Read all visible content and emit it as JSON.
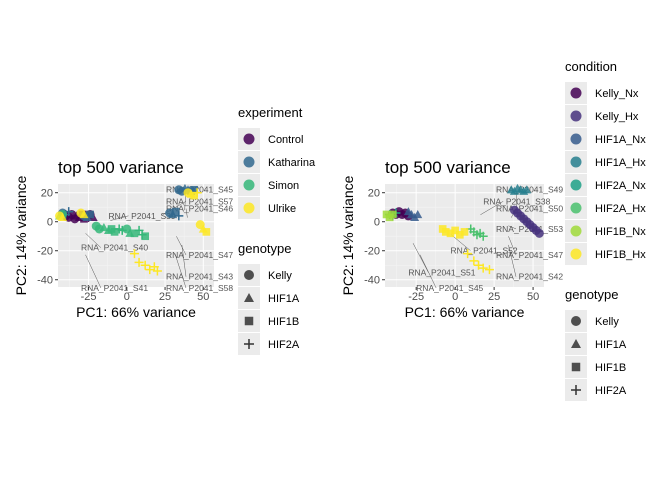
{
  "chart_data": [
    {
      "type": "scatter",
      "title": "top 500 variance",
      "xlabel": "PC1: 66% variance",
      "ylabel": "PC2: 14% variance",
      "xlim": [
        -45,
        57
      ],
      "ylim": [
        -45,
        26
      ],
      "xticks": [
        "-25",
        "0",
        "25",
        "50"
      ],
      "yticks": [
        "20",
        "0",
        "-20",
        "-40"
      ],
      "grid": true,
      "legend": "right",
      "color_legend": {
        "title": "experiment",
        "items": [
          "Control",
          "Katharina",
          "Simon",
          "Ulrike"
        ]
      },
      "shape_legend": {
        "title": "genotype",
        "items": [
          "Kelly",
          "HIF1A",
          "HIF1B",
          "HIF2A"
        ]
      },
      "sample_labels": [
        {
          "text": "RNA_P2041_S45",
          "x": 42,
          "y": 20
        },
        {
          "text": "RNA_P2041_S46",
          "x": 44,
          "y": 7
        },
        {
          "text": "RNA_P2041_S57",
          "x": 26,
          "y": 12
        },
        {
          "text": "RNA_P2041_S39",
          "x": -12,
          "y": 2
        },
        {
          "text": "RNA_P2041_S47",
          "x": 36,
          "y": -25
        },
        {
          "text": "RNA_P2041_S43",
          "x": 40,
          "y": -40
        },
        {
          "text": "RNA_P2041_S58",
          "x": 35,
          "y": -55
        },
        {
          "text": "RNA_P2041_S41",
          "x": -30,
          "y": -57
        },
        {
          "text": "RNA_P2041_S40",
          "x": -30,
          "y": -20
        }
      ],
      "series": [
        {
          "name": "Control",
          "color": "#440154",
          "points": [
            [
              -40,
              4,
              "Kelly"
            ],
            [
              -38,
              3,
              "Kelly"
            ],
            [
              -36,
              5,
              "Kelly"
            ],
            [
              -34,
              2,
              "Kelly"
            ],
            [
              -33,
              4,
              "HIF1A"
            ],
            [
              -31,
              3,
              "HIF1A"
            ],
            [
              -29,
              5,
              "HIF1B"
            ],
            [
              -28,
              2,
              "HIF1B"
            ],
            [
              -27,
              4,
              "HIF2A"
            ],
            [
              -25,
              3,
              "HIF2A"
            ],
            [
              -24,
              5,
              "Kelly"
            ],
            [
              -22,
              3,
              "HIF1A"
            ]
          ]
        },
        {
          "name": "Katharina",
          "color": "#31688e",
          "points": [
            [
              34,
              22,
              "Kelly"
            ],
            [
              36,
              21,
              "Kelly"
            ],
            [
              38,
              23,
              "HIF1A"
            ],
            [
              40,
              22,
              "HIF1A"
            ],
            [
              42,
              21,
              "HIF1B"
            ],
            [
              44,
              22,
              "HIF1B"
            ],
            [
              -42,
              6,
              "Kelly"
            ],
            [
              -40,
              5,
              "HIF2A"
            ],
            [
              -38,
              7,
              "HIF2A"
            ],
            [
              -28,
              4,
              "Kelly"
            ],
            [
              -26,
              3,
              "HIF1A"
            ],
            [
              -24,
              5,
              "HIF1B"
            ],
            [
              28,
              6,
              "Kelly"
            ],
            [
              30,
              5,
              "HIF1A"
            ],
            [
              32,
              7,
              "HIF1B"
            ],
            [
              34,
              4,
              "HIF2A"
            ]
          ]
        },
        {
          "name": "Simon",
          "color": "#35b779",
          "points": [
            [
              -42,
              5,
              "Kelly"
            ],
            [
              -44,
              4,
              "HIF1A"
            ],
            [
              -20,
              -3,
              "Kelly"
            ],
            [
              -18,
              -5,
              "Kelly"
            ],
            [
              -15,
              -4,
              "HIF1A"
            ],
            [
              -12,
              -6,
              "HIF1A"
            ],
            [
              -10,
              -5,
              "HIF1B"
            ],
            [
              -8,
              -7,
              "HIF1B"
            ],
            [
              -5,
              -5,
              "HIF2A"
            ],
            [
              -3,
              -6,
              "HIF2A"
            ],
            [
              0,
              -5,
              "Kelly"
            ],
            [
              2,
              -8,
              "HIF1A"
            ],
            [
              5,
              -8,
              "HIF1B"
            ],
            [
              8,
              -6,
              "HIF2A"
            ],
            [
              10,
              -9,
              "HIF2A"
            ],
            [
              12,
              -10,
              "HIF1B"
            ]
          ]
        },
        {
          "name": "Ulrike",
          "color": "#fde725",
          "points": [
            [
              -44,
              4,
              "Kelly"
            ],
            [
              -42,
              3,
              "HIF1A"
            ],
            [
              -30,
              6,
              "Kelly"
            ],
            [
              -28,
              5,
              "HIF1A"
            ],
            [
              40,
              20,
              "Kelly"
            ],
            [
              42,
              19,
              "HIF1A"
            ],
            [
              44,
              18,
              "HIF1B"
            ],
            [
              46,
              20,
              "HIF2A"
            ],
            [
              48,
              -2,
              "Kelly"
            ],
            [
              50,
              -5,
              "HIF1A"
            ],
            [
              52,
              -7,
              "HIF1B"
            ],
            [
              5,
              -22,
              "HIF2A"
            ],
            [
              8,
              -28,
              "HIF2A"
            ],
            [
              12,
              -30,
              "HIF2A"
            ],
            [
              15,
              -33,
              "HIF2A"
            ],
            [
              18,
              -31,
              "HIF2A"
            ],
            [
              20,
              -34,
              "HIF2A"
            ]
          ]
        }
      ]
    },
    {
      "type": "scatter",
      "title": "top 500 variance",
      "xlabel": "PC1: 66% variance",
      "ylabel": "PC2: 14% variance",
      "xlim": [
        -45,
        57
      ],
      "ylim": [
        -45,
        26
      ],
      "xticks": [
        "-25",
        "0",
        "25",
        "50"
      ],
      "yticks": [
        "20",
        "0",
        "-20",
        "-40"
      ],
      "grid": true,
      "legend": "right",
      "color_legend": {
        "title": "condition",
        "items": [
          "Kelly_Nx",
          "Kelly_Hx",
          "HIF1A_Nx",
          "HIF1A_Hx",
          "HIF2A_Nx",
          "HIF2A_Hx",
          "HIF1B_Nx",
          "HIF1B_Hx"
        ]
      },
      "shape_legend": {
        "title": "genotype",
        "items": [
          "Kelly",
          "HIF1A",
          "HIF1B",
          "HIF2A"
        ]
      },
      "sample_labels": [
        {
          "text": "RNA_P2041_S49",
          "x": 44,
          "y": 20
        },
        {
          "text": "RNA_P2041_S50",
          "x": 40,
          "y": 7
        },
        {
          "text": "RNA_P2041_S53",
          "x": 38,
          "y": -7
        },
        {
          "text": "RNA_P2041_S47",
          "x": 38,
          "y": -25
        },
        {
          "text": "RNA_P2041_S42",
          "x": 38,
          "y": -40
        },
        {
          "text": "RNA_P2041_S45",
          "x": -25,
          "y": -57
        },
        {
          "text": "RNA_P2041_S51",
          "x": -30,
          "y": -37
        },
        {
          "text": "RNA_P2041_S38",
          "x": 18,
          "y": 12
        },
        {
          "text": "RNA_P2041_S52",
          "x": -3,
          "y": -22
        }
      ],
      "series": [
        {
          "name": "Kelly_Nx",
          "color": "#440154",
          "points": [
            [
              -40,
              6,
              "Kelly"
            ],
            [
              -38,
              5,
              "Kelly"
            ],
            [
              -36,
              7,
              "Kelly"
            ],
            [
              -34,
              5,
              "Kelly"
            ],
            [
              -32,
              6,
              "Kelly"
            ],
            [
              -30,
              4,
              "Kelly"
            ]
          ]
        },
        {
          "name": "Kelly_Hx",
          "color": "#46337e",
          "points": [
            [
              38,
              8,
              "Kelly"
            ],
            [
              40,
              6,
              "Kelly"
            ],
            [
              42,
              4,
              "Kelly"
            ],
            [
              44,
              2,
              "Kelly"
            ],
            [
              46,
              0,
              "Kelly"
            ],
            [
              48,
              -2,
              "Kelly"
            ],
            [
              50,
              -4,
              "Kelly"
            ],
            [
              52,
              -6,
              "Kelly"
            ],
            [
              54,
              -8,
              "Kelly"
            ]
          ]
        },
        {
          "name": "HIF1A_Nx",
          "color": "#365c8d",
          "points": [
            [
              -28,
              5,
              "HIF1A"
            ],
            [
              -26,
              3,
              "HIF1A"
            ],
            [
              -24,
              5,
              "HIF1A"
            ],
            [
              -30,
              7,
              "HIF1A"
            ]
          ]
        },
        {
          "name": "HIF1A_Hx",
          "color": "#277f8e",
          "points": [
            [
              36,
              22,
              "HIF1A"
            ],
            [
              38,
              21,
              "HIF1A"
            ],
            [
              40,
              23,
              "HIF1A"
            ],
            [
              42,
              22,
              "HIF1A"
            ],
            [
              44,
              21,
              "HIF1A"
            ],
            [
              46,
              22,
              "HIF1A"
            ]
          ]
        },
        {
          "name": "HIF2A_Nx",
          "color": "#1fa187",
          "points": [
            [
              -42,
              5,
              "HIF2A"
            ],
            [
              -40,
              4,
              "HIF2A"
            ],
            [
              -38,
              6,
              "HIF2A"
            ]
          ]
        },
        {
          "name": "HIF2A_Hx",
          "color": "#4ac16d",
          "points": [
            [
              10,
              -5,
              "HIF2A"
            ],
            [
              12,
              -7,
              "HIF2A"
            ],
            [
              14,
              -9,
              "HIF2A"
            ],
            [
              16,
              -8,
              "HIF2A"
            ],
            [
              18,
              -10,
              "HIF2A"
            ]
          ]
        },
        {
          "name": "HIF1B_Nx",
          "color": "#a0da39",
          "points": [
            [
              -44,
              5,
              "HIF1B"
            ],
            [
              -42,
              3,
              "HIF1B"
            ],
            [
              -40,
              5,
              "HIF1B"
            ]
          ]
        },
        {
          "name": "HIF1B_Hx",
          "color": "#fde725",
          "points": [
            [
              -8,
              -5,
              "HIF1B"
            ],
            [
              -6,
              -7,
              "HIF1B"
            ],
            [
              -3,
              -8,
              "HIF1B"
            ],
            [
              0,
              -6,
              "HIF1B"
            ],
            [
              3,
              -9,
              "HIF1B"
            ],
            [
              6,
              -7,
              "HIF1B"
            ],
            [
              8,
              -22,
              "HIF2A"
            ],
            [
              12,
              -27,
              "HIF2A"
            ],
            [
              15,
              -30,
              "HIF2A"
            ],
            [
              18,
              -32,
              "HIF2A"
            ],
            [
              22,
              -33,
              "HIF2A"
            ]
          ]
        }
      ]
    }
  ]
}
